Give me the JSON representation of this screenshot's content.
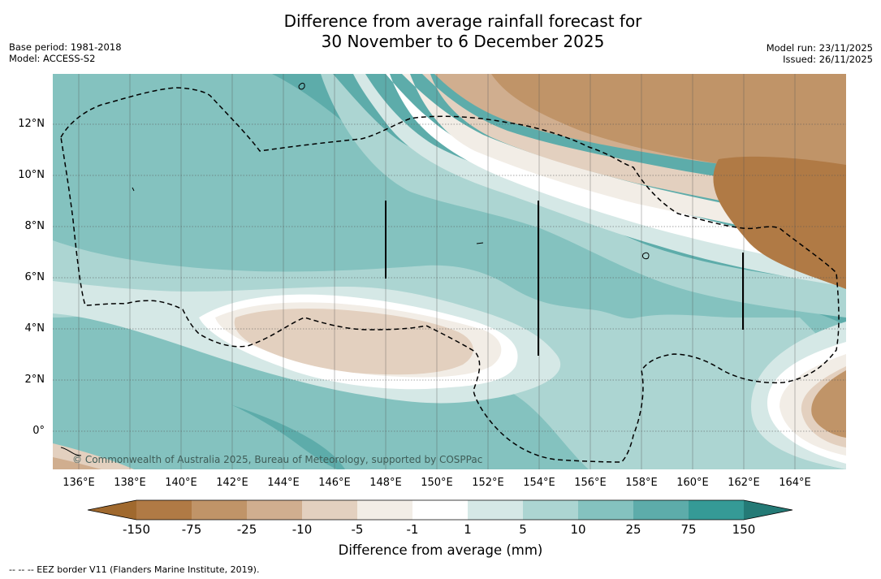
{
  "title": {
    "line1": "Difference from average rainfall forecast for",
    "line2": "30 November to 6 December 2025"
  },
  "meta_left": {
    "base_period": "Base period: 1981-2018",
    "model": "Model: ACCESS-S2"
  },
  "meta_right": {
    "model_run": "Model run: 23/11/2025",
    "issued": "Issued: 26/11/2025"
  },
  "y_ticks": [
    "12°N",
    "10°N",
    "8°N",
    "6°N",
    "4°N",
    "2°N",
    "0°"
  ],
  "x_ticks": [
    "136°E",
    "138°E",
    "140°E",
    "142°E",
    "144°E",
    "146°E",
    "148°E",
    "150°E",
    "152°E",
    "154°E",
    "156°E",
    "158°E",
    "160°E",
    "162°E",
    "164°E"
  ],
  "copyright": "© Commonwealth of Australia 2025, Bureau of Meteorology, supported by COSPPac",
  "colorbar": {
    "labels": [
      "-150",
      "-75",
      "-25",
      "-10",
      "-5",
      "-1",
      "1",
      "5",
      "10",
      "25",
      "75",
      "150"
    ],
    "colors": [
      "#a0692e",
      "#b07a45",
      "#c09468",
      "#d0ae8f",
      "#e3d0bf",
      "#f2ede6",
      "#ffffff",
      "#d5e8e6",
      "#acd5d2",
      "#84c2bf",
      "#5dacaa",
      "#359a96",
      "#247a76"
    ],
    "title": "Difference from average (mm)"
  },
  "footnote": "--  --  -- EEZ border V11 (Flanders Marine Institute, 2019).",
  "colors": {
    "wet": "#5dacaa",
    "dry": "#c09468",
    "grid": "#555555",
    "border": "#000000"
  }
}
